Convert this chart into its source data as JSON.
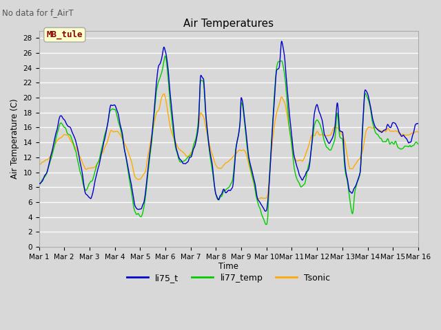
{
  "title": "Air Temperatures",
  "subtitle": "No data for f_AirT",
  "ylabel": "Air Temperature (C)",
  "xlabel": "Time",
  "annotation": "MB_tule",
  "legend_labels": [
    "li75_t",
    "li77_temp",
    "Tsonic"
  ],
  "legend_colors": [
    "#0000cc",
    "#00cc00",
    "#ffaa00"
  ],
  "ylim": [
    0,
    29
  ],
  "yticks": [
    0,
    2,
    4,
    6,
    8,
    10,
    12,
    14,
    16,
    18,
    20,
    22,
    24,
    26,
    28
  ],
  "bg_color": "#d8d8d8",
  "plot_bg": "#d8d8d8",
  "grid_color": "#ffffff",
  "n_points": 1500
}
